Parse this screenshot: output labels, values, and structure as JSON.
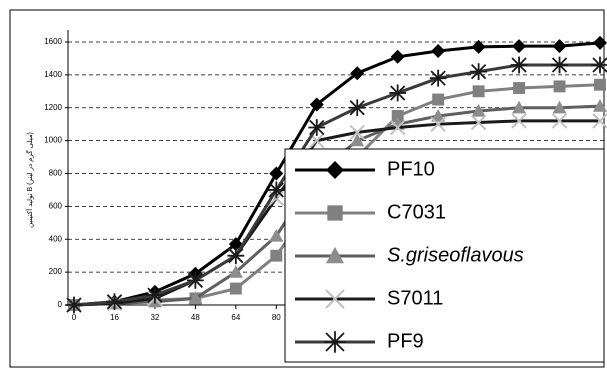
{
  "chart_data": {
    "type": "line",
    "y_label": "تولید آکتینین B (میلی گرم در لیتر)",
    "x": [
      0,
      16,
      32,
      48,
      64,
      80,
      96,
      112,
      128,
      144,
      160,
      176,
      192,
      208
    ],
    "xlim": [
      0,
      208
    ],
    "xticks": [
      0,
      16,
      32,
      48,
      64,
      80
    ],
    "ylim": [
      0,
      1600
    ],
    "yticks": [
      0,
      200,
      400,
      600,
      800,
      1000,
      1200,
      1400,
      1600
    ],
    "grid": true,
    "series": [
      {
        "name": "PF10",
        "color": "#000000",
        "marker": "diamond",
        "marker_color": "#000000",
        "values": [
          0,
          20,
          80,
          190,
          370,
          800,
          1220,
          1410,
          1510,
          1545,
          1570,
          1575,
          1575,
          1595
        ]
      },
      {
        "name": "C7031",
        "color": "#808080",
        "marker": "square",
        "marker_color": "#808080",
        "values": [
          0,
          10,
          30,
          40,
          100,
          300,
          650,
          900,
          1150,
          1250,
          1300,
          1320,
          1330,
          1340
        ]
      },
      {
        "name": "S.griseoflavous",
        "italic": true,
        "color": "#5f5f5f",
        "marker": "triangle",
        "marker_color": "#8c8c8c",
        "values": [
          0,
          10,
          20,
          40,
          200,
          420,
          800,
          1000,
          1100,
          1150,
          1180,
          1200,
          1200,
          1210
        ]
      },
      {
        "name": "S7011",
        "color": "#1a1a1a",
        "marker": "x",
        "marker_color": "#c0c0c0",
        "values": [
          0,
          10,
          40,
          150,
          300,
          650,
          1000,
          1050,
          1080,
          1100,
          1110,
          1120,
          1120,
          1120
        ]
      },
      {
        "name": "PF9",
        "color": "#3a3a3a",
        "marker": "star",
        "marker_color": "#1a1a1a",
        "values": [
          0,
          20,
          60,
          150,
          300,
          700,
          1080,
          1200,
          1290,
          1380,
          1420,
          1460,
          1460,
          1460
        ]
      }
    ]
  }
}
